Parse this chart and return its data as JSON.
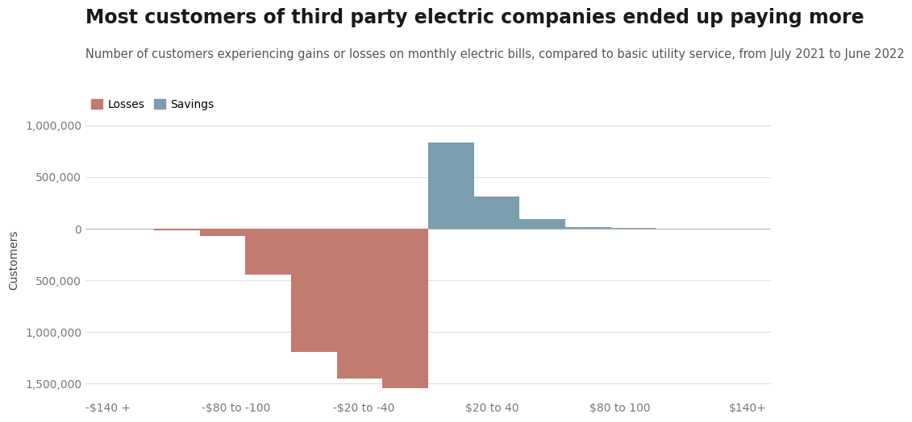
{
  "title": "Most customers of third party electric companies ended up paying more",
  "subtitle": "Number of customers experiencing gains or losses on monthly electric bills, compared to basic utility service, from July 2021 to June 2022",
  "ylabel": "Customers",
  "legend_labels": [
    "Losses",
    "Savings"
  ],
  "loss_color": "#c17b6f",
  "savings_color": "#7a9db0",
  "background_color": "#ffffff",
  "loss_values": [
    -5000,
    -20000,
    -75000,
    -450000,
    -1200000,
    -1450000,
    -1550000
  ],
  "savings_values": [
    830000,
    310000,
    90000,
    15000,
    5000,
    1000,
    500
  ],
  "xtick_labels": [
    "-$140 +",
    "-$80 to -100",
    "-$20 to -40",
    "$20 to 40",
    "$80 to 100",
    "$140+"
  ],
  "ylim_min": -1650000,
  "ylim_max": 1050000,
  "title_fontsize": 17,
  "subtitle_fontsize": 10.5,
  "axis_label_fontsize": 10,
  "tick_fontsize": 10
}
